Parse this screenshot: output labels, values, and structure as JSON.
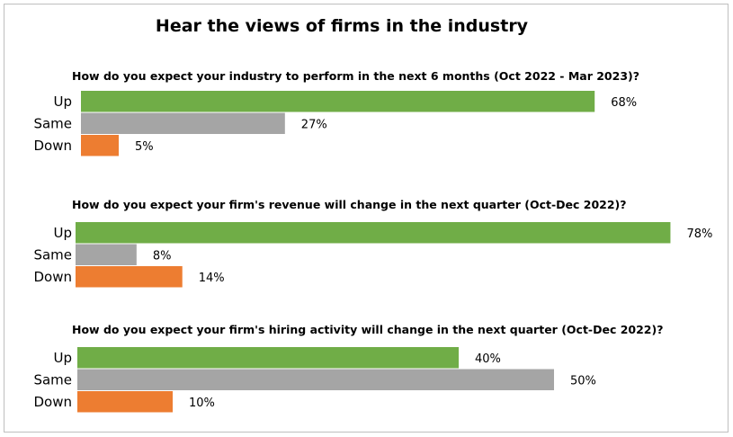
{
  "title": "Hear the views of firms in the industry",
  "colors": {
    "Up": "#70ad47",
    "Same": "#a5a5a5",
    "Down": "#ed7d31"
  },
  "chart_data": [
    {
      "type": "bar",
      "orientation": "horizontal",
      "title": "How do you expect your industry to perform in the next 6 months (Oct 2022 - Mar 2023)?",
      "categories": [
        "Up",
        "Same",
        "Down"
      ],
      "values": [
        68,
        27,
        5
      ],
      "labels": [
        "68%",
        "27%",
        "5%"
      ],
      "xlim": [
        0,
        100
      ]
    },
    {
      "type": "bar",
      "orientation": "horizontal",
      "title": "How do you expect your firm's revenue will change in the next quarter (Oct-Dec 2022)?",
      "categories": [
        "Up",
        "Same",
        "Down"
      ],
      "values": [
        78,
        8,
        14
      ],
      "labels": [
        "78%",
        "8%",
        "14%"
      ],
      "xlim": [
        0,
        100
      ]
    },
    {
      "type": "bar",
      "orientation": "horizontal",
      "title": "How do you expect your firm's hiring activity will change in the next quarter (Oct-Dec 2022)?",
      "categories": [
        "Up",
        "Same",
        "Down"
      ],
      "values": [
        40,
        50,
        10
      ],
      "labels": [
        "40%",
        "50%",
        "10%"
      ],
      "xlim": [
        0,
        100
      ]
    }
  ]
}
